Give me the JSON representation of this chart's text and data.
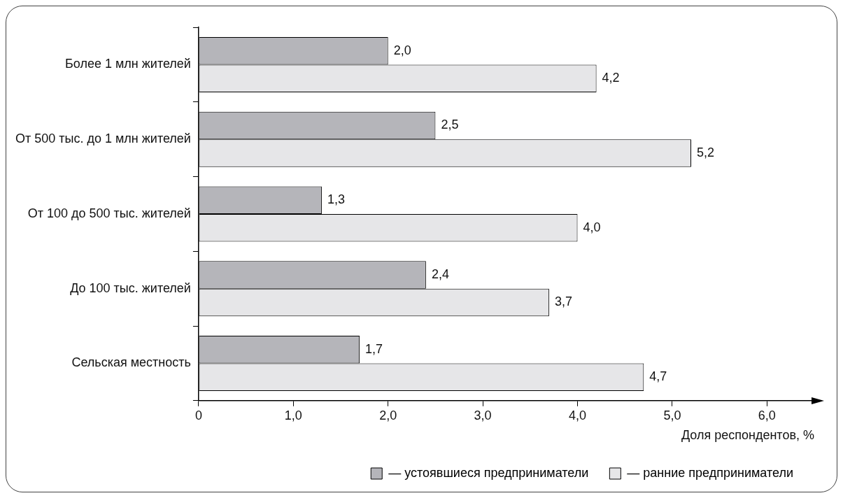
{
  "chart_data": {
    "type": "bar",
    "orientation": "horizontal",
    "categories": [
      "Более 1 млн жителей",
      "От 500 тыс. до 1 млн жителей",
      "От 100 до 500 тыс. жителей",
      "До 100 тыс. жителей",
      "Сельская местность"
    ],
    "series": [
      {
        "name": "— устоявшиеся предприниматели",
        "color": "#b5b5ba",
        "values": [
          2.0,
          2.5,
          1.3,
          2.4,
          1.7
        ],
        "value_labels": [
          "2,0",
          "2,5",
          "1,3",
          "2,4",
          "1,7"
        ]
      },
      {
        "name": "— ранние предприниматели",
        "color": "#e6e6e8",
        "values": [
          4.2,
          5.2,
          4.0,
          3.7,
          4.7
        ],
        "value_labels": [
          "4,2",
          "5,2",
          "4,0",
          "3,7",
          "4,7"
        ]
      }
    ],
    "xlim": [
      0,
      6.5
    ],
    "xticks": [
      0,
      {
        "value": 1,
        "label": "1,0"
      },
      {
        "value": 2,
        "label": "2,0"
      },
      {
        "value": 3,
        "label": "3,0"
      },
      {
        "value": 4,
        "label": "4,0"
      },
      {
        "value": 5,
        "label": "5,0"
      },
      {
        "value": 6,
        "label": "6,0"
      }
    ],
    "xlabel": "Доля респондентов, %",
    "grid": false,
    "legend": "bottom right"
  }
}
